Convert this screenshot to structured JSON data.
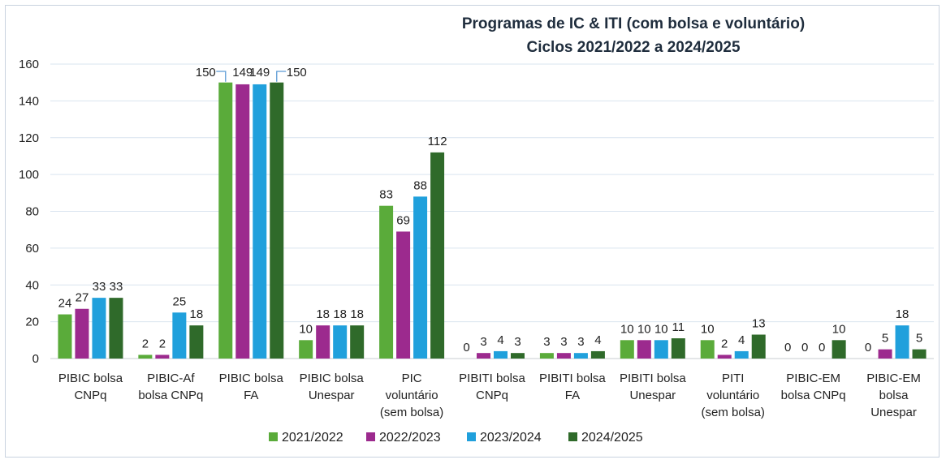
{
  "chart_data": {
    "type": "bar",
    "title": [
      "Programas de IC & ITI (com bolsa e voluntário)",
      "Ciclos 2021/2022 a 2024/2025"
    ],
    "categories": [
      [
        "PIBIC bolsa",
        "CNPq"
      ],
      [
        "PIBIC-Af",
        "bolsa CNPq"
      ],
      [
        "PIBIC bolsa",
        "FA"
      ],
      [
        "PIBIC bolsa",
        "Unespar"
      ],
      [
        "PIC",
        "voluntário",
        "(sem bolsa)"
      ],
      [
        "PIBITI bolsa",
        "CNPq"
      ],
      [
        "PIBITI bolsa",
        "FA"
      ],
      [
        "PIBITI bolsa",
        "Unespar"
      ],
      [
        "PITI",
        "voluntário",
        "(sem bolsa)"
      ],
      [
        "PIBIC-EM",
        "bolsa CNPq"
      ],
      [
        "PIBIC-EM",
        "bolsa",
        "Unespar"
      ]
    ],
    "series": [
      {
        "name": "2021/2022",
        "color": "#5aab3a",
        "values": [
          24,
          2,
          150,
          10,
          83,
          0,
          3,
          10,
          10,
          0,
          0
        ]
      },
      {
        "name": "2022/2023",
        "color": "#9c2a8e",
        "values": [
          27,
          2,
          149,
          18,
          69,
          3,
          3,
          10,
          2,
          0,
          5
        ]
      },
      {
        "name": "2023/2024",
        "color": "#20a0dc",
        "values": [
          33,
          25,
          149,
          18,
          88,
          4,
          3,
          10,
          4,
          0,
          18
        ]
      },
      {
        "name": "2024/2025",
        "color": "#2f6a2a",
        "values": [
          33,
          18,
          150,
          18,
          112,
          3,
          4,
          11,
          13,
          10,
          5
        ]
      }
    ],
    "ylim": [
      0,
      160
    ],
    "yticks": [
      0,
      20,
      40,
      60,
      80,
      100,
      120,
      140,
      160
    ],
    "grid": true,
    "legend": "bottom"
  }
}
